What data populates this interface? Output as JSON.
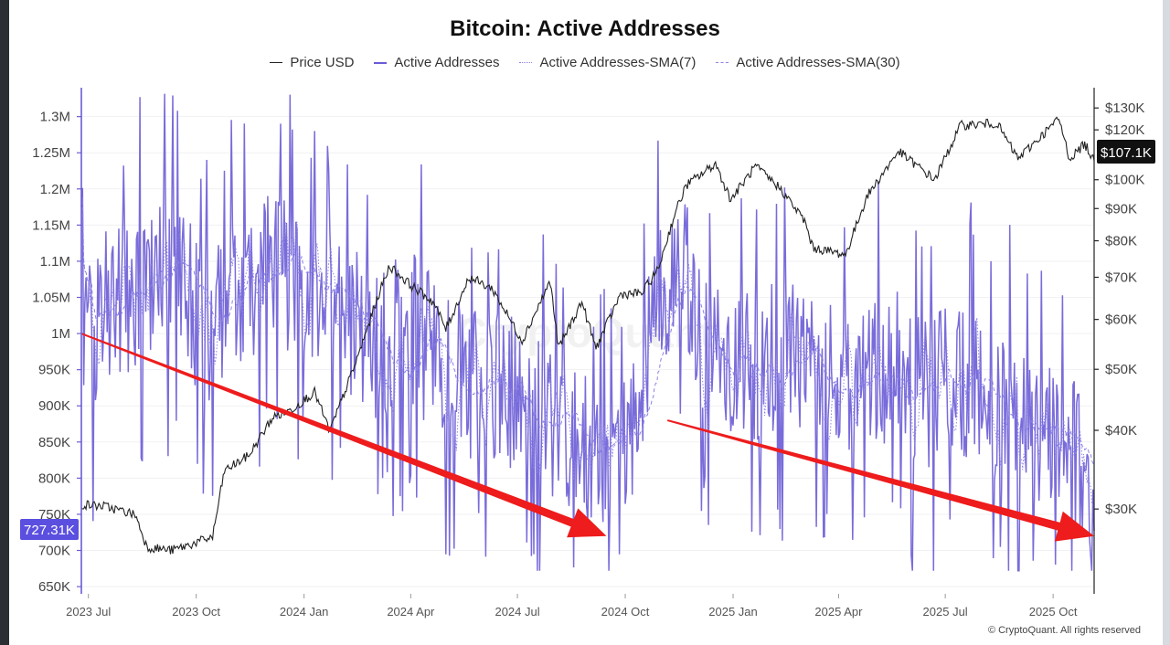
{
  "colors": {
    "price": "#222222",
    "addresses": "#6a5cd6",
    "sma": "#8d82e6",
    "arrow": "#ee1c1c",
    "badge_left": "#5b4fe0",
    "badge_right": "#111111"
  },
  "legend": [
    {
      "label": "Price USD",
      "style": "solid-black"
    },
    {
      "label": "Active Addresses",
      "style": "solid-purple"
    },
    {
      "label": "Active Addresses-SMA(7)",
      "style": "dotted-purple"
    },
    {
      "label": "Active Addresses-SMA(30)",
      "style": "dashed-purple"
    }
  ],
  "badges": {
    "left_value": "727.31K",
    "right_value": "$107.1K"
  },
  "watermark": "CryptoQuant",
  "footer": "© CryptoQuant. All rights reserved",
  "chart_data": {
    "type": "line",
    "title": "Bitcoin: Active Addresses",
    "x_range": [
      "2023-06-25",
      "2025-11-05"
    ],
    "x_ticks": [
      {
        "label": "2023 Jul",
        "date": "2023-07-01"
      },
      {
        "label": "2023 Oct",
        "date": "2023-10-01"
      },
      {
        "label": "2024 Jan",
        "date": "2024-01-01"
      },
      {
        "label": "2024 Apr",
        "date": "2024-04-01"
      },
      {
        "label": "2024 Jul",
        "date": "2024-07-01"
      },
      {
        "label": "2024 Oct",
        "date": "2024-10-01"
      },
      {
        "label": "2025 Jan",
        "date": "2025-01-01"
      },
      {
        "label": "2025 Apr",
        "date": "2025-04-01"
      },
      {
        "label": "2025 Jul",
        "date": "2025-07-01"
      },
      {
        "label": "2025 Oct",
        "date": "2025-10-01"
      }
    ],
    "y_left": {
      "label": "Active Addresses",
      "range": [
        640000,
        1340000
      ],
      "ticks": [
        {
          "label": "1.3M",
          "value": 1300000
        },
        {
          "label": "1.25M",
          "value": 1250000
        },
        {
          "label": "1.2M",
          "value": 1200000
        },
        {
          "label": "1.15M",
          "value": 1150000
        },
        {
          "label": "1.1M",
          "value": 1100000
        },
        {
          "label": "1.05M",
          "value": 1050000
        },
        {
          "label": "1M",
          "value": 1000000
        },
        {
          "label": "950K",
          "value": 950000
        },
        {
          "label": "900K",
          "value": 900000
        },
        {
          "label": "850K",
          "value": 850000
        },
        {
          "label": "800K",
          "value": 800000
        },
        {
          "label": "750K",
          "value": 750000
        },
        {
          "label": "700K",
          "value": 700000
        },
        {
          "label": "650K",
          "value": 650000
        }
      ]
    },
    "y_right": {
      "label": "Price USD",
      "scale": "log",
      "range": [
        22000,
        140000
      ],
      "ticks": [
        {
          "label": "$130K",
          "value": 130000
        },
        {
          "label": "$120K",
          "value": 120000
        },
        {
          "label": "$100K",
          "value": 100000
        },
        {
          "label": "$90K",
          "value": 90000
        },
        {
          "label": "$80K",
          "value": 80000
        },
        {
          "label": "$70K",
          "value": 70000
        },
        {
          "label": "$60K",
          "value": 60000
        },
        {
          "label": "$50K",
          "value": 50000
        },
        {
          "label": "$40K",
          "value": 40000
        },
        {
          "label": "$30K",
          "value": 30000
        }
      ]
    },
    "series": [
      {
        "name": "Price USD",
        "axis": "right",
        "points": [
          [
            "2023-06-25",
            30500
          ],
          [
            "2023-07-15",
            30300
          ],
          [
            "2023-08-10",
            29400
          ],
          [
            "2023-08-20",
            26100
          ],
          [
            "2023-09-10",
            25800
          ],
          [
            "2023-09-25",
            26300
          ],
          [
            "2023-10-15",
            27100
          ],
          [
            "2023-10-25",
            34500
          ],
          [
            "2023-11-15",
            36500
          ],
          [
            "2023-12-05",
            41900
          ],
          [
            "2023-12-20",
            43000
          ],
          [
            "2024-01-10",
            46000
          ],
          [
            "2024-01-23",
            39800
          ],
          [
            "2024-02-15",
            51800
          ],
          [
            "2024-03-05",
            66000
          ],
          [
            "2024-03-14",
            73000
          ],
          [
            "2024-04-01",
            68000
          ],
          [
            "2024-04-20",
            64000
          ],
          [
            "2024-05-01",
            58000
          ],
          [
            "2024-05-21",
            70000
          ],
          [
            "2024-06-10",
            67000
          ],
          [
            "2024-07-05",
            55500
          ],
          [
            "2024-07-29",
            69000
          ],
          [
            "2024-08-05",
            54000
          ],
          [
            "2024-08-25",
            64000
          ],
          [
            "2024-09-06",
            54000
          ],
          [
            "2024-09-27",
            65800
          ],
          [
            "2024-10-15",
            66000
          ],
          [
            "2024-10-29",
            72000
          ],
          [
            "2024-11-12",
            88000
          ],
          [
            "2024-11-22",
            98000
          ],
          [
            "2024-12-17",
            106000
          ],
          [
            "2024-12-30",
            93000
          ],
          [
            "2025-01-20",
            105000
          ],
          [
            "2025-02-10",
            97000
          ],
          [
            "2025-03-03",
            86000
          ],
          [
            "2025-03-10",
            78000
          ],
          [
            "2025-04-07",
            76000
          ],
          [
            "2025-04-25",
            94000
          ],
          [
            "2025-05-22",
            111000
          ],
          [
            "2025-06-22",
            100000
          ],
          [
            "2025-07-14",
            122000
          ],
          [
            "2025-08-14",
            123000
          ],
          [
            "2025-09-01",
            108000
          ],
          [
            "2025-10-06",
            125000
          ],
          [
            "2025-10-15",
            108000
          ],
          [
            "2025-10-28",
            114000
          ],
          [
            "2025-11-05",
            107100
          ]
        ]
      },
      {
        "name": "Active Addresses",
        "axis": "left",
        "points": [
          [
            "2023-06-25",
            980000
          ],
          [
            "2023-07-15",
            1040000
          ],
          [
            "2023-08-10",
            1060000
          ],
          [
            "2023-09-01",
            1090000
          ],
          [
            "2023-09-20",
            1080000
          ],
          [
            "2023-10-10",
            990000
          ],
          [
            "2023-11-01",
            1040000
          ],
          [
            "2023-12-01",
            1090000
          ],
          [
            "2024-01-01",
            1060000
          ],
          [
            "2024-02-01",
            1040000
          ],
          [
            "2024-03-01",
            990000
          ],
          [
            "2024-04-01",
            1010000
          ],
          [
            "2024-05-01",
            950000
          ],
          [
            "2024-06-01",
            930000
          ],
          [
            "2024-07-01",
            920000
          ],
          [
            "2024-08-01",
            880000
          ],
          [
            "2024-09-01",
            840000
          ],
          [
            "2024-09-20",
            770000
          ],
          [
            "2024-10-10",
            880000
          ],
          [
            "2024-11-01",
            1060000
          ],
          [
            "2024-11-20",
            1100000
          ],
          [
            "2024-12-15",
            950000
          ],
          [
            "2025-01-15",
            960000
          ],
          [
            "2025-02-15",
            960000
          ],
          [
            "2025-03-15",
            970000
          ],
          [
            "2025-04-15",
            930000
          ],
          [
            "2025-05-15",
            960000
          ],
          [
            "2025-06-15",
            920000
          ],
          [
            "2025-07-15",
            930000
          ],
          [
            "2025-08-15",
            890000
          ],
          [
            "2025-09-15",
            880000
          ],
          [
            "2025-10-15",
            870000
          ],
          [
            "2025-11-05",
            727310
          ]
        ]
      }
    ],
    "annotations": [
      {
        "type": "arrow",
        "from": [
          "2023-06-25",
          1000000
        ],
        "to": [
          "2024-09-15",
          720000
        ]
      },
      {
        "type": "arrow",
        "from": [
          "2024-11-06",
          880000
        ],
        "to": [
          "2025-11-05",
          720000
        ]
      }
    ]
  }
}
